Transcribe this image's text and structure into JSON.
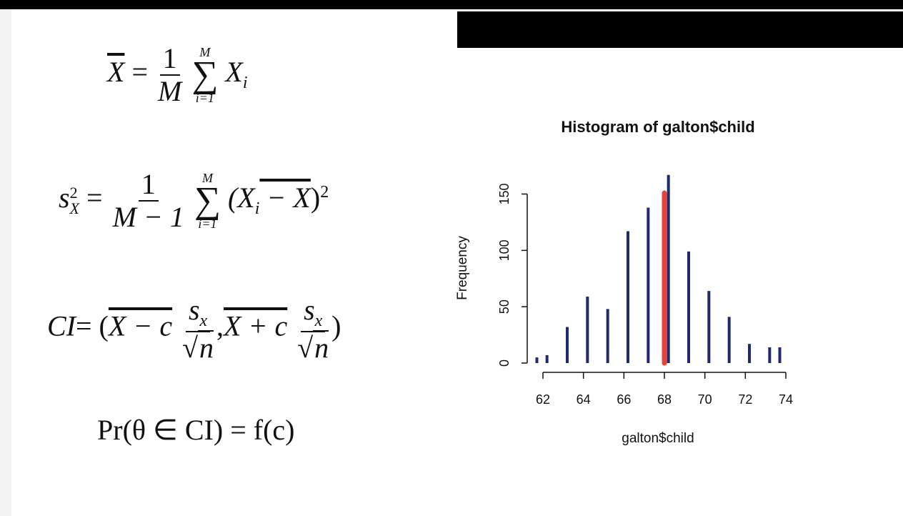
{
  "formulas": {
    "mean": {
      "lhs": "X",
      "eq": "=",
      "num": "1",
      "den": "M",
      "upper": "M",
      "lower": "i=1",
      "term": "X",
      "term_sub": "i"
    },
    "variance": {
      "lhs": "s",
      "lhs_sup": "2",
      "lhs_sub": "X",
      "eq": "=",
      "num": "1",
      "den": "M − 1",
      "upper": "M",
      "lower": "i=1",
      "term_open": "(X",
      "term_sub": "i",
      "term_rest": " − X",
      "term_close": ")",
      "term_sup": "2"
    },
    "ci": {
      "lhs": "CI",
      "eq": "= (",
      "part1": "X − c",
      "frac_num": "s",
      "frac_num_sub": "x",
      "frac_den": "n",
      "comma": ",",
      "part2": "X + c",
      "close": ")"
    },
    "prob": {
      "text": "Pr(θ ∈ CI) = f(c)"
    }
  },
  "chart_data": {
    "type": "bar",
    "title": "Histogram of galton$child",
    "xlabel": "galton$child",
    "ylabel": "Frequency",
    "xlim": [
      62,
      74
    ],
    "ylim": [
      0,
      170
    ],
    "x_ticks": [
      62,
      64,
      66,
      68,
      70,
      72,
      74
    ],
    "y_ticks": [
      0,
      50,
      100,
      150
    ],
    "bars": [
      {
        "x": 61.7,
        "value": 5
      },
      {
        "x": 62.2,
        "value": 7
      },
      {
        "x": 63.2,
        "value": 32
      },
      {
        "x": 64.2,
        "value": 59
      },
      {
        "x": 65.2,
        "value": 48
      },
      {
        "x": 66.2,
        "value": 117
      },
      {
        "x": 67.2,
        "value": 138
      },
      {
        "x": 68.2,
        "value": 167
      },
      {
        "x": 69.2,
        "value": 99
      },
      {
        "x": 70.2,
        "value": 64
      },
      {
        "x": 71.2,
        "value": 41
      },
      {
        "x": 72.2,
        "value": 17
      },
      {
        "x": 73.2,
        "value": 14
      },
      {
        "x": 73.7,
        "value": 14
      }
    ],
    "highlight": {
      "x": 68,
      "value": 151,
      "color": "#e8413b"
    },
    "bar_color": "#1f2a6e"
  }
}
